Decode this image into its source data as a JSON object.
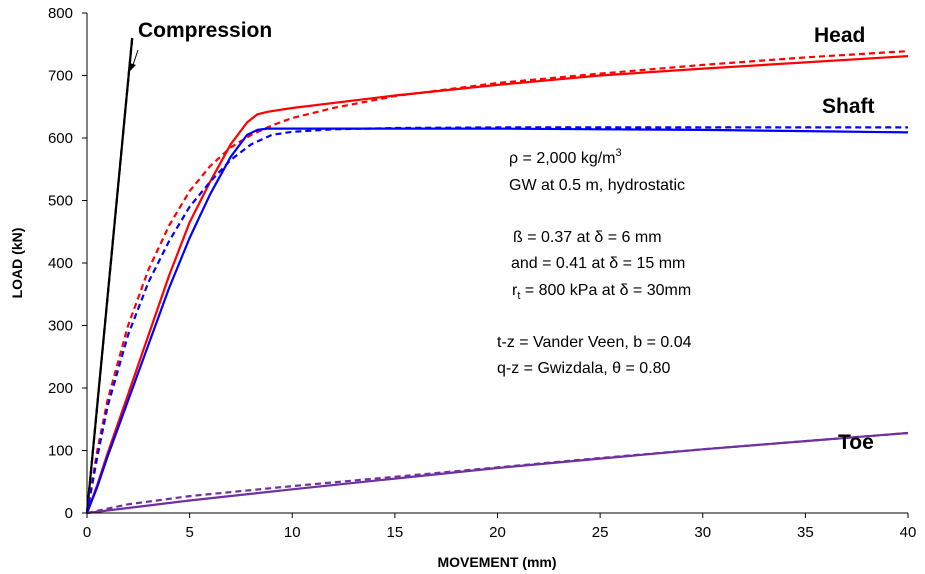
{
  "chart_data": {
    "type": "line",
    "xlabel": "MOVEMENT  (mm)",
    "ylabel": "LOAD (kN)",
    "xlim": [
      0,
      40
    ],
    "ylim": [
      0,
      800
    ],
    "x_ticks": [
      "0",
      "5",
      "10",
      "15",
      "20",
      "25",
      "30",
      "35",
      "40"
    ],
    "y_ticks": [
      "0",
      "100",
      "200",
      "300",
      "400",
      "500",
      "600",
      "700",
      "800"
    ],
    "grid": false,
    "legend": "none",
    "series": [
      {
        "name": "Compression",
        "color": "#000000",
        "style": "solid",
        "x": [
          0,
          2.2
        ],
        "y": [
          0,
          760
        ]
      },
      {
        "name": "Compression",
        "color": "#000000",
        "style": "dashed",
        "x": [
          0,
          2.2
        ],
        "y": [
          0,
          760
        ]
      },
      {
        "name": "Head",
        "color": "#ff0000",
        "style": "solid",
        "x": [
          0,
          0.5,
          1,
          2,
          3,
          4,
          5,
          6,
          7,
          7.8,
          8.3,
          8.8,
          10,
          15,
          20,
          25,
          30,
          35,
          40
        ],
        "y": [
          0,
          45,
          95,
          190,
          285,
          380,
          465,
          530,
          590,
          625,
          638,
          642,
          648,
          668,
          685,
          700,
          711,
          721,
          731
        ]
      },
      {
        "name": "Head",
        "color": "#ff0000",
        "style": "dashed",
        "x": [
          0,
          0.5,
          1,
          2,
          3,
          4,
          5,
          6,
          7,
          8,
          9,
          10,
          12,
          15,
          20,
          25,
          30,
          35,
          40
        ],
        "y": [
          0,
          100,
          180,
          300,
          390,
          460,
          515,
          555,
          585,
          605,
          620,
          632,
          648,
          667,
          688,
          703,
          717,
          729,
          739
        ]
      },
      {
        "name": "Shaft",
        "color": "#0000ff",
        "style": "solid",
        "x": [
          0,
          0.5,
          1,
          2,
          3,
          4,
          5,
          6,
          7,
          7.8,
          8.3,
          8.8,
          10,
          15,
          20,
          25,
          30,
          35,
          40
        ],
        "y": [
          0,
          42,
          90,
          180,
          270,
          360,
          440,
          510,
          570,
          605,
          613,
          615,
          615,
          615,
          615,
          614,
          613,
          611,
          609
        ]
      },
      {
        "name": "Shaft",
        "color": "#0000ff",
        "style": "dashed",
        "x": [
          0,
          0.5,
          1,
          2,
          3,
          4,
          5,
          6,
          7,
          8,
          9,
          10,
          12,
          15,
          20,
          25,
          30,
          35,
          40
        ],
        "y": [
          0,
          90,
          170,
          285,
          370,
          435,
          490,
          530,
          565,
          590,
          605,
          610,
          614,
          616,
          617,
          617,
          617,
          617,
          617
        ]
      },
      {
        "name": "Toe",
        "color": "#7030a0",
        "style": "solid",
        "x": [
          0,
          5,
          10,
          15,
          20,
          25,
          30,
          35,
          40
        ],
        "y": [
          0,
          20,
          38,
          55,
          72,
          87,
          102,
          115,
          128
        ]
      },
      {
        "name": "Toe",
        "color": "#7030a0",
        "style": "dashed",
        "x": [
          0,
          2,
          5,
          10,
          15,
          20,
          25,
          30,
          35,
          40
        ],
        "y": [
          0,
          14,
          27,
          43,
          58,
          73,
          88,
          102,
          115,
          128
        ]
      }
    ],
    "labels": {
      "compression": "Compression",
      "head": "Head",
      "shaft": "Shaft",
      "toe": "Toe"
    },
    "annotations": {
      "rho": "ρ = 2,000 kg/m",
      "rho_sup": "3",
      "gw": "GW at 0.5 m, hydrostatic",
      "beta1": "ß = 0.37 at δ = 6 mm",
      "beta2": "and = 0.41 at δ = 15 mm",
      "rt_prefix": "r",
      "rt_sub": "t",
      "rt_rest": " =  800 kPa at δ = 30mm",
      "tz": "t-z  = Vander Veen,  b = 0.04",
      "qz": "q-z = Gwizdala, θ = 0.80"
    }
  }
}
